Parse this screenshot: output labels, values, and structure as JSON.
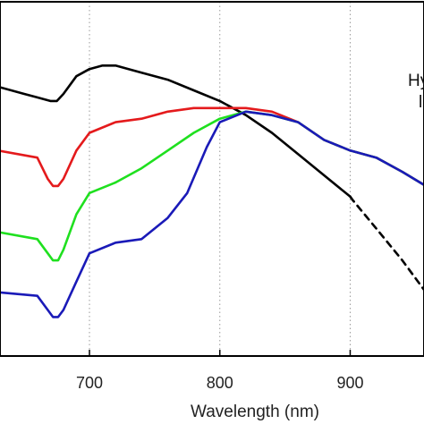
{
  "chart_data": {
    "type": "line",
    "title": "",
    "xlabel": "Wavelength (nm)",
    "ylabel": "",
    "xlim": [
      630,
      958
    ],
    "ylim": [
      0,
      1
    ],
    "xticks": [
      700,
      800,
      900
    ],
    "xtick_labels": [
      "700",
      "800",
      "900"
    ],
    "grid": true,
    "legend_text_fragments": [
      "Hy",
      "l"
    ],
    "series": [
      {
        "color": "#000000",
        "dashed_from_x": 900,
        "x": [
          630,
          650,
          660,
          670,
          675,
          680,
          690,
          700,
          710,
          720,
          730,
          740,
          760,
          780,
          800,
          820,
          840,
          860,
          880,
          900,
          902,
          920,
          940,
          958
        ],
        "y": [
          0.76,
          0.74,
          0.73,
          0.72,
          0.72,
          0.74,
          0.79,
          0.81,
          0.82,
          0.82,
          0.81,
          0.8,
          0.78,
          0.75,
          0.72,
          0.68,
          0.63,
          0.57,
          0.51,
          0.45,
          0.44,
          0.36,
          0.27,
          0.18
        ]
      },
      {
        "color": "#e41a1c",
        "x": [
          630,
          660,
          668,
          672,
          676,
          680,
          690,
          700,
          720,
          740,
          760,
          780,
          800,
          820,
          840,
          860,
          880,
          900,
          920,
          940,
          958
        ],
        "y": [
          0.58,
          0.56,
          0.5,
          0.48,
          0.48,
          0.5,
          0.58,
          0.63,
          0.66,
          0.67,
          0.69,
          0.7,
          0.7,
          0.7,
          0.69,
          0.66,
          0.61,
          0.58,
          0.56,
          0.52,
          0.48
        ]
      },
      {
        "color": "#1fe01f",
        "x": [
          630,
          660,
          668,
          672,
          676,
          680,
          690,
          700,
          720,
          740,
          760,
          780,
          800,
          820,
          840,
          860,
          880,
          900,
          920,
          940,
          958
        ],
        "y": [
          0.35,
          0.33,
          0.29,
          0.27,
          0.27,
          0.3,
          0.4,
          0.46,
          0.49,
          0.53,
          0.58,
          0.63,
          0.67,
          0.69,
          0.68,
          0.66,
          0.61,
          0.58,
          0.56,
          0.52,
          0.48
        ]
      },
      {
        "color": "#1a1ab8",
        "x": [
          630,
          660,
          668,
          672,
          676,
          680,
          690,
          700,
          720,
          740,
          760,
          775,
          790,
          800,
          820,
          840,
          860,
          880,
          900,
          920,
          940,
          958
        ],
        "y": [
          0.18,
          0.17,
          0.13,
          0.11,
          0.11,
          0.13,
          0.21,
          0.29,
          0.32,
          0.33,
          0.39,
          0.46,
          0.59,
          0.66,
          0.69,
          0.68,
          0.66,
          0.61,
          0.58,
          0.56,
          0.52,
          0.48
        ]
      }
    ]
  }
}
